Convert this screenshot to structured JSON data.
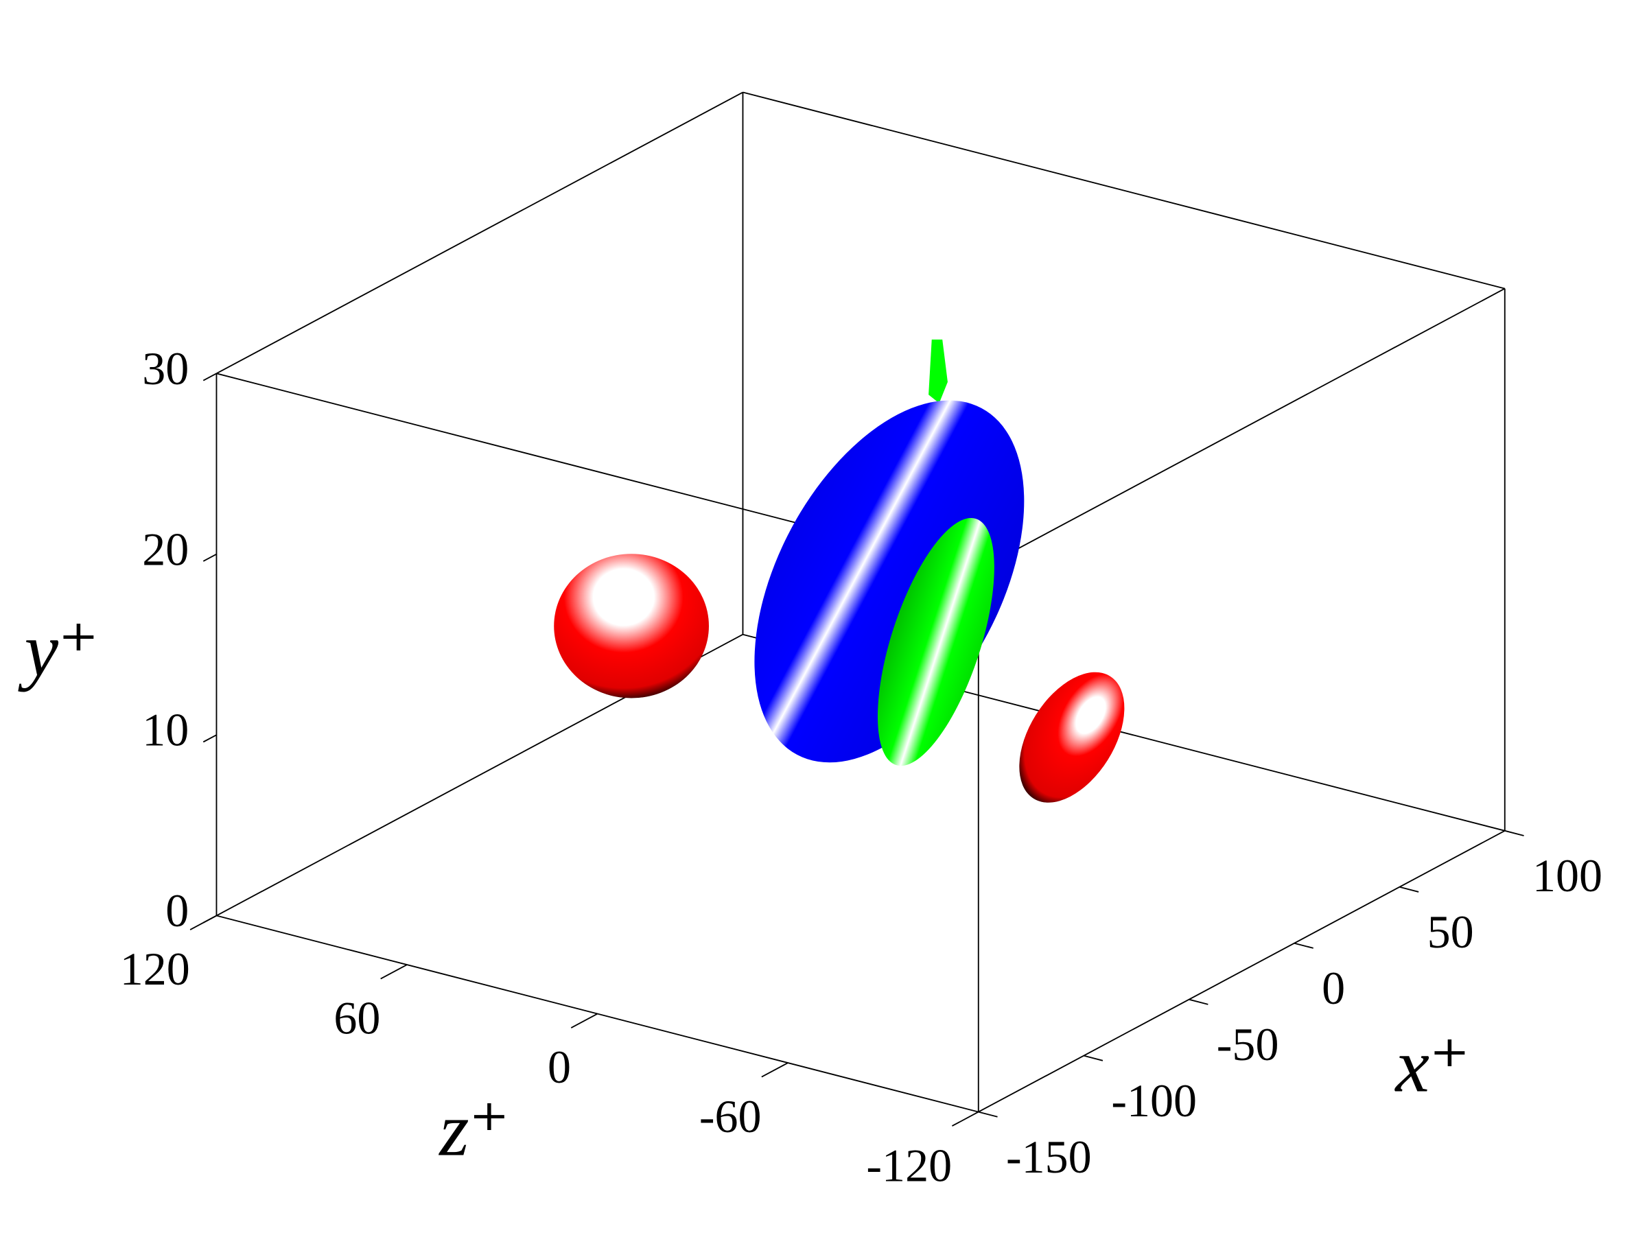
{
  "chart_data": {
    "type": "isosurface3d",
    "xlabel": "x⁺",
    "ylabel": "y⁺",
    "zlabel": "z⁺",
    "xlim": [
      -150,
      100
    ],
    "xticks": [
      -150,
      -100,
      -50,
      0,
      50,
      100
    ],
    "ylim": [
      0,
      30
    ],
    "yticks": [
      0,
      10,
      20,
      30
    ],
    "zlim": [
      -120,
      120
    ],
    "zticks": [
      120,
      60,
      0,
      -60,
      -120
    ]
  }
}
